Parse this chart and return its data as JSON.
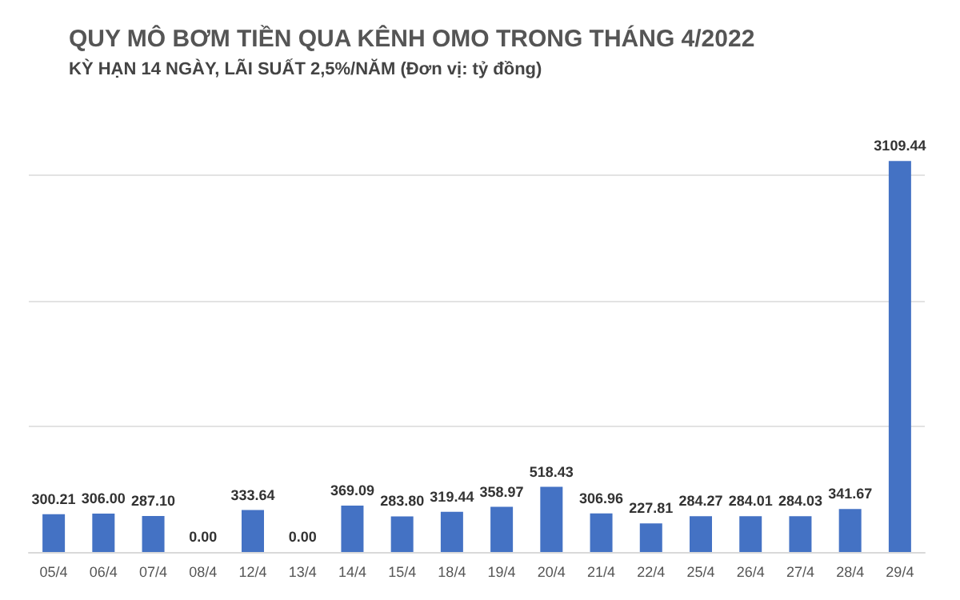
{
  "chart_data": {
    "type": "bar",
    "title": "QUY MÔ BƠM TIỀN QUA KÊNH OMO TRONG THÁNG 4/2022",
    "subtitle": "KỲ HẠN 14 NGÀY, LÃI SUẤT 2,5%/NĂM (Đơn vị: tỷ đồng)",
    "categories": [
      "05/4",
      "06/4",
      "07/4",
      "08/4",
      "12/4",
      "13/4",
      "14/4",
      "15/4",
      "18/4",
      "19/4",
      "20/4",
      "21/4",
      "22/4",
      "25/4",
      "26/4",
      "27/4",
      "28/4",
      "29/4"
    ],
    "values": [
      300.21,
      306.0,
      287.1,
      0.0,
      333.64,
      0.0,
      369.09,
      283.8,
      319.44,
      358.97,
      518.43,
      306.96,
      227.81,
      284.27,
      284.01,
      284.03,
      341.67,
      3109.44
    ],
    "value_labels": [
      "300.21",
      "306.00",
      "287.10",
      "0.00",
      "333.64",
      "0.00",
      "369.09",
      "283.80",
      "319.44",
      "358.97",
      "518.43",
      "306.96",
      "227.81",
      "284.27",
      "284.01",
      "284.03",
      "341.67",
      "3109.44"
    ],
    "color": "#4472c4",
    "yticks": [
      {
        "value": 0,
        "label": null
      },
      {
        "value": 1000,
        "label": null
      },
      {
        "value": 2000,
        "label": null
      },
      {
        "value": 3000,
        "label": null
      }
    ],
    "grid": "y",
    "tick_labels": "x"
  }
}
